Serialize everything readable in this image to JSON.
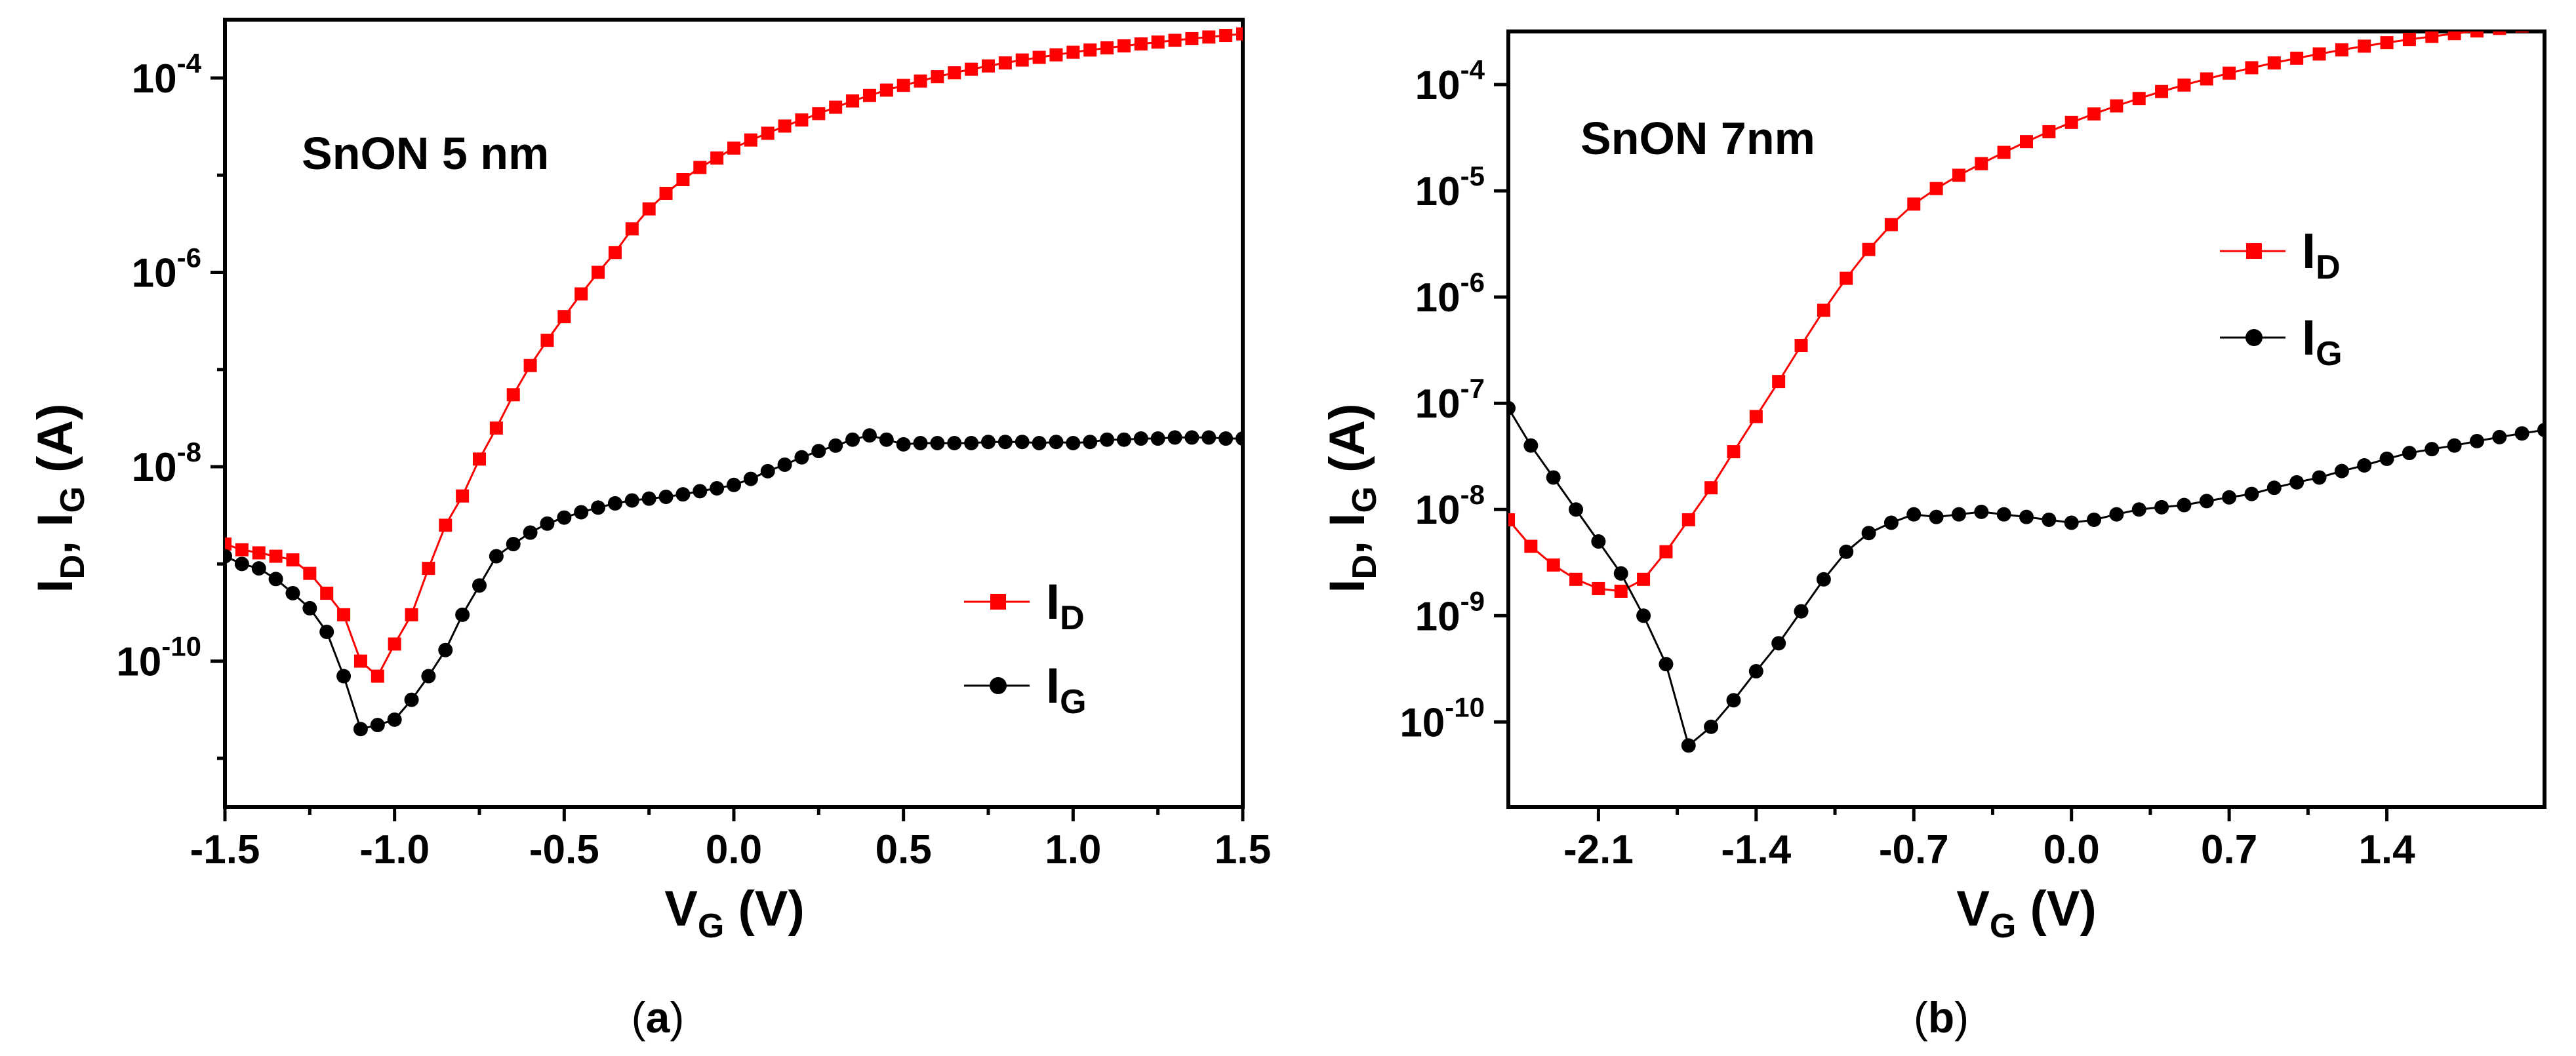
{
  "chart_data": [
    {
      "type": "line",
      "panel_label": "(a)",
      "caption": {
        "open": "(",
        "letter": "a",
        "close": ")"
      },
      "annotation": "SnON 5 nm",
      "xlabel": {
        "main": "V",
        "sub": "G",
        "unit": " (V)"
      },
      "ylabel": {
        "i1": "I",
        "s1": "D",
        "mid": ", I",
        "s2": "G",
        "unit": " (A)"
      },
      "xlim": [
        -1.5,
        1.5
      ],
      "ylim_log10": [
        -11.5,
        -3.4
      ],
      "y_scale": "log",
      "x_ticks": [
        -1.5,
        -1.0,
        -0.5,
        0.0,
        0.5,
        1.0,
        1.5
      ],
      "x_tick_labels": [
        "-1.5",
        "-1.0",
        "-0.5",
        "0.0",
        "0.5",
        "1.0",
        "1.5"
      ],
      "y_major_exponents": [
        -4,
        -6,
        -8,
        -10
      ],
      "y_tick_base": "10",
      "y_tick_exponents": [
        "-4",
        "-6",
        "-8",
        "-10"
      ],
      "y_minor_exponents": [
        -5,
        -7,
        -9,
        -11
      ],
      "legend": {
        "position": "lower-right",
        "items": [
          {
            "name": "I",
            "sub": "D"
          },
          {
            "name": "I",
            "sub": "G"
          }
        ]
      },
      "series": [
        {
          "name": "I_D",
          "color": "#ff0000",
          "marker": "square",
          "points": [
            [
              -1.5,
              1.6e-09
            ],
            [
              -1.45,
              1.4e-09
            ],
            [
              -1.4,
              1.3e-09
            ],
            [
              -1.35,
              1.2e-09
            ],
            [
              -1.3,
              1.1e-09
            ],
            [
              -1.25,
              8e-10
            ],
            [
              -1.2,
              5e-10
            ],
            [
              -1.15,
              3e-10
            ],
            [
              -1.1,
              1e-10
            ],
            [
              -1.05,
              7e-11
            ],
            [
              -1.0,
              1.5e-10
            ],
            [
              -0.95,
              3e-10
            ],
            [
              -0.9,
              9e-10
            ],
            [
              -0.85,
              2.5e-09
            ],
            [
              -0.8,
              5e-09
            ],
            [
              -0.75,
              1.2e-08
            ],
            [
              -0.7,
              2.5e-08
            ],
            [
              -0.65,
              5.5e-08
            ],
            [
              -0.6,
              1.1e-07
            ],
            [
              -0.55,
              2e-07
            ],
            [
              -0.5,
              3.5e-07
            ],
            [
              -0.45,
              6e-07
            ],
            [
              -0.4,
              1e-06
            ],
            [
              -0.35,
              1.6e-06
            ],
            [
              -0.3,
              2.8e-06
            ],
            [
              -0.25,
              4.5e-06
            ],
            [
              -0.2,
              6.5e-06
            ],
            [
              -0.15,
              9e-06
            ],
            [
              -0.1,
              1.2e-05
            ],
            [
              -0.05,
              1.5e-05
            ],
            [
              0.0,
              1.9e-05
            ],
            [
              0.05,
              2.3e-05
            ],
            [
              0.1,
              2.7e-05
            ],
            [
              0.15,
              3.2e-05
            ],
            [
              0.2,
              3.7e-05
            ],
            [
              0.25,
              4.3e-05
            ],
            [
              0.3,
              5e-05
            ],
            [
              0.35,
              5.8e-05
            ],
            [
              0.4,
              6.6e-05
            ],
            [
              0.45,
              7.5e-05
            ],
            [
              0.5,
              8.4e-05
            ],
            [
              0.55,
              9.3e-05
            ],
            [
              0.6,
              0.000103
            ],
            [
              0.65,
              0.000113
            ],
            [
              0.7,
              0.000123
            ],
            [
              0.75,
              0.000133
            ],
            [
              0.8,
              0.000143
            ],
            [
              0.85,
              0.000153
            ],
            [
              0.9,
              0.000163
            ],
            [
              0.95,
              0.000173
            ],
            [
              1.0,
              0.000184
            ],
            [
              1.05,
              0.000194
            ],
            [
              1.1,
              0.000204
            ],
            [
              1.15,
              0.000214
            ],
            [
              1.2,
              0.000224
            ],
            [
              1.25,
              0.000234
            ],
            [
              1.3,
              0.000244
            ],
            [
              1.35,
              0.000254
            ],
            [
              1.4,
              0.000264
            ],
            [
              1.45,
              0.000274
            ],
            [
              1.5,
              0.000284
            ]
          ]
        },
        {
          "name": "I_G",
          "color": "#000000",
          "marker": "circle",
          "points": [
            [
              -1.5,
              1.2e-09
            ],
            [
              -1.45,
              1e-09
            ],
            [
              -1.4,
              9e-10
            ],
            [
              -1.35,
              7e-10
            ],
            [
              -1.3,
              5e-10
            ],
            [
              -1.25,
              3.5e-10
            ],
            [
              -1.2,
              2e-10
            ],
            [
              -1.15,
              7e-11
            ],
            [
              -1.1,
              2e-11
            ],
            [
              -1.05,
              2.2e-11
            ],
            [
              -1.0,
              2.5e-11
            ],
            [
              -0.95,
              4e-11
            ],
            [
              -0.9,
              7e-11
            ],
            [
              -0.85,
              1.3e-10
            ],
            [
              -0.8,
              3e-10
            ],
            [
              -0.75,
              6e-10
            ],
            [
              -0.7,
              1.2e-09
            ],
            [
              -0.65,
              1.6e-09
            ],
            [
              -0.6,
              2.1e-09
            ],
            [
              -0.55,
              2.6e-09
            ],
            [
              -0.5,
              3e-09
            ],
            [
              -0.45,
              3.4e-09
            ],
            [
              -0.4,
              3.8e-09
            ],
            [
              -0.35,
              4.2e-09
            ],
            [
              -0.3,
              4.5e-09
            ],
            [
              -0.25,
              4.7e-09
            ],
            [
              -0.2,
              4.9e-09
            ],
            [
              -0.15,
              5.2e-09
            ],
            [
              -0.1,
              5.6e-09
            ],
            [
              -0.05,
              6e-09
            ],
            [
              0.0,
              6.5e-09
            ],
            [
              0.05,
              7.5e-09
            ],
            [
              0.1,
              9e-09
            ],
            [
              0.15,
              1.05e-08
            ],
            [
              0.2,
              1.25e-08
            ],
            [
              0.25,
              1.45e-08
            ],
            [
              0.3,
              1.65e-08
            ],
            [
              0.35,
              1.9e-08
            ],
            [
              0.4,
              2.1e-08
            ],
            [
              0.45,
              1.9e-08
            ],
            [
              0.5,
              1.7e-08
            ],
            [
              0.55,
              1.75e-08
            ],
            [
              0.6,
              1.75e-08
            ],
            [
              0.65,
              1.75e-08
            ],
            [
              0.7,
              1.75e-08
            ],
            [
              0.75,
              1.8e-08
            ],
            [
              0.8,
              1.8e-08
            ],
            [
              0.85,
              1.8e-08
            ],
            [
              0.9,
              1.75e-08
            ],
            [
              0.95,
              1.8e-08
            ],
            [
              1.0,
              1.75e-08
            ],
            [
              1.05,
              1.8e-08
            ],
            [
              1.1,
              1.9e-08
            ],
            [
              1.15,
              1.9e-08
            ],
            [
              1.2,
              1.95e-08
            ],
            [
              1.25,
              1.95e-08
            ],
            [
              1.3,
              2e-08
            ],
            [
              1.35,
              2e-08
            ],
            [
              1.4,
              2e-08
            ],
            [
              1.45,
              1.95e-08
            ],
            [
              1.5,
              1.95e-08
            ]
          ]
        }
      ]
    },
    {
      "type": "line",
      "panel_label": "(b)",
      "caption": {
        "open": "(",
        "letter": "b",
        "close": ")"
      },
      "annotation": "SnON 7nm",
      "xlabel": {
        "main": "V",
        "sub": "G",
        "unit": " (V)"
      },
      "ylabel": {
        "i1": "I",
        "s1": "D",
        "mid": ", I",
        "s2": "G",
        "unit": " (A)"
      },
      "xlim": [
        -2.5,
        2.1
      ],
      "ylim_log10": [
        -10.8,
        -3.5
      ],
      "y_scale": "log",
      "x_ticks": [
        -2.1,
        -1.4,
        -0.7,
        0.0,
        0.7,
        1.4
      ],
      "x_tick_labels": [
        "-2.1",
        "-1.4",
        "-0.7",
        "0.0",
        "0.7",
        "1.4"
      ],
      "y_major_exponents": [
        -4,
        -5,
        -6,
        -7,
        -8,
        -9,
        -10
      ],
      "y_tick_base": "10",
      "y_tick_exponents": [
        "-4",
        "-5",
        "-6",
        "-7",
        "-8",
        "-9",
        "-10"
      ],
      "y_minor_exponents": [],
      "legend": {
        "position": "upper-right",
        "items": [
          {
            "name": "I",
            "sub": "D"
          },
          {
            "name": "I",
            "sub": "G"
          }
        ]
      },
      "series": [
        {
          "name": "I_D",
          "color": "#ff0000",
          "marker": "square",
          "points": [
            [
              -2.5,
              8e-09
            ],
            [
              -2.4,
              4.5e-09
            ],
            [
              -2.3,
              3e-09
            ],
            [
              -2.2,
              2.2e-09
            ],
            [
              -2.1,
              1.8e-09
            ],
            [
              -2.0,
              1.7e-09
            ],
            [
              -1.9,
              2.2e-09
            ],
            [
              -1.8,
              4e-09
            ],
            [
              -1.7,
              8e-09
            ],
            [
              -1.6,
              1.6e-08
            ],
            [
              -1.5,
              3.5e-08
            ],
            [
              -1.4,
              7.5e-08
            ],
            [
              -1.3,
              1.6e-07
            ],
            [
              -1.2,
              3.5e-07
            ],
            [
              -1.1,
              7.5e-07
            ],
            [
              -1.0,
              1.5e-06
            ],
            [
              -0.9,
              2.8e-06
            ],
            [
              -0.8,
              4.8e-06
            ],
            [
              -0.7,
              7.5e-06
            ],
            [
              -0.6,
              1.05e-05
            ],
            [
              -0.5,
              1.4e-05
            ],
            [
              -0.4,
              1.8e-05
            ],
            [
              -0.3,
              2.3e-05
            ],
            [
              -0.2,
              2.9e-05
            ],
            [
              -0.1,
              3.6e-05
            ],
            [
              0.0,
              4.4e-05
            ],
            [
              0.1,
              5.3e-05
            ],
            [
              0.2,
              6.3e-05
            ],
            [
              0.3,
              7.4e-05
            ],
            [
              0.4,
              8.6e-05
            ],
            [
              0.5,
              9.9e-05
            ],
            [
              0.6,
              0.000113
            ],
            [
              0.7,
              0.000128
            ],
            [
              0.8,
              0.000144
            ],
            [
              0.9,
              0.00016
            ],
            [
              1.0,
              0.000177
            ],
            [
              1.1,
              0.000194
            ],
            [
              1.2,
              0.000212
            ],
            [
              1.3,
              0.00023
            ],
            [
              1.4,
              0.000248
            ],
            [
              1.5,
              0.000266
            ],
            [
              1.6,
              0.000284
            ],
            [
              1.7,
              0.000302
            ],
            [
              1.8,
              0.00032
            ],
            [
              1.9,
              0.000338
            ],
            [
              2.0,
              0.000356
            ],
            [
              2.1,
              0.00037
            ]
          ]
        },
        {
          "name": "I_G",
          "color": "#000000",
          "marker": "circle",
          "points": [
            [
              -2.5,
              9e-08
            ],
            [
              -2.4,
              4e-08
            ],
            [
              -2.3,
              2e-08
            ],
            [
              -2.2,
              1e-08
            ],
            [
              -2.1,
              5e-09
            ],
            [
              -2.0,
              2.5e-09
            ],
            [
              -1.9,
              1e-09
            ],
            [
              -1.8,
              3.5e-10
            ],
            [
              -1.7,
              6e-11
            ],
            [
              -1.6,
              9e-11
            ],
            [
              -1.5,
              1.6e-10
            ],
            [
              -1.4,
              3e-10
            ],
            [
              -1.3,
              5.5e-10
            ],
            [
              -1.2,
              1.1e-09
            ],
            [
              -1.1,
              2.2e-09
            ],
            [
              -1.0,
              4e-09
            ],
            [
              -0.9,
              6e-09
            ],
            [
              -0.8,
              7.5e-09
            ],
            [
              -0.7,
              9e-09
            ],
            [
              -0.6,
              8.5e-09
            ],
            [
              -0.5,
              9e-09
            ],
            [
              -0.4,
              9.5e-09
            ],
            [
              -0.3,
              9e-09
            ],
            [
              -0.2,
              8.5e-09
            ],
            [
              -0.1,
              8e-09
            ],
            [
              0.0,
              7.5e-09
            ],
            [
              0.1,
              8e-09
            ],
            [
              0.2,
              9e-09
            ],
            [
              0.3,
              1e-08
            ],
            [
              0.4,
              1.05e-08
            ],
            [
              0.5,
              1.1e-08
            ],
            [
              0.6,
              1.2e-08
            ],
            [
              0.7,
              1.3e-08
            ],
            [
              0.8,
              1.4e-08
            ],
            [
              0.9,
              1.6e-08
            ],
            [
              1.0,
              1.8e-08
            ],
            [
              1.1,
              2e-08
            ],
            [
              1.2,
              2.3e-08
            ],
            [
              1.3,
              2.6e-08
            ],
            [
              1.4,
              3e-08
            ],
            [
              1.5,
              3.4e-08
            ],
            [
              1.6,
              3.7e-08
            ],
            [
              1.7,
              4e-08
            ],
            [
              1.8,
              4.4e-08
            ],
            [
              1.9,
              4.8e-08
            ],
            [
              2.0,
              5.2e-08
            ],
            [
              2.1,
              5.6e-08
            ]
          ]
        }
      ]
    }
  ]
}
